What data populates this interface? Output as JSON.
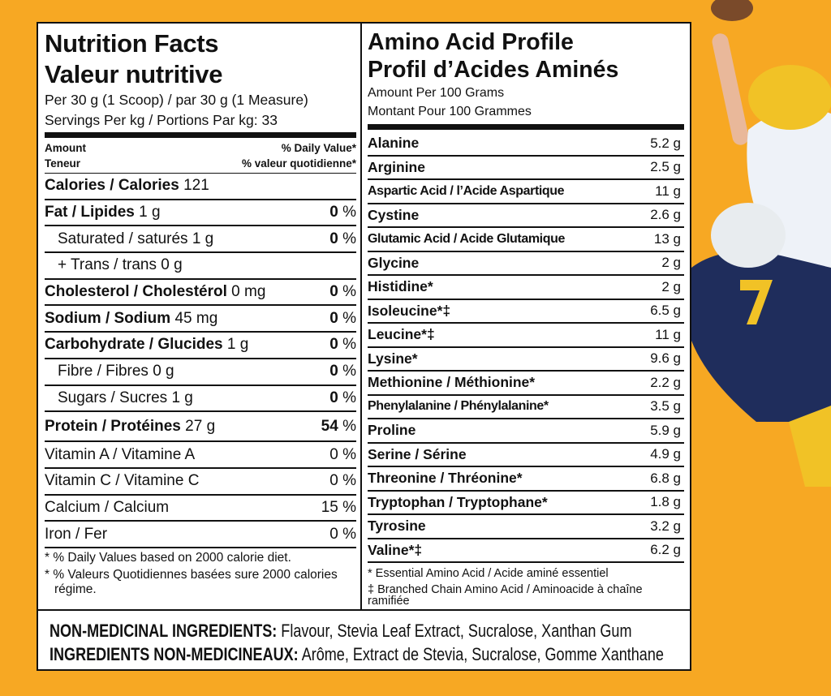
{
  "nutrition_facts": {
    "title": "Nutrition Facts",
    "title_fr": "Valeur nutritive",
    "serving": "Per 30 g (1 Scoop) / par 30 g (1 Measure)",
    "servings": "Servings Per kg / Portions Par kg: 33",
    "amount": "Amount",
    "teneur": "Teneur",
    "daily_value": "% Daily Value*",
    "valeur_quotidienne": "% valeur quotidienne*",
    "rows": [
      {
        "label": "Calories / Calories",
        "amount": "121"
      },
      {
        "label": "Fat / Lipides",
        "amount": "1 g",
        "dv": "0",
        "unit": "%"
      },
      {
        "sub": "Saturated / saturés 1 g",
        "dv": "0",
        "unit": "%"
      },
      {
        "sub": "+ Trans / trans 0 g"
      },
      {
        "label": "Cholesterol / Cholestérol",
        "amount": "0 mg",
        "dv": "0",
        "unit": "%"
      },
      {
        "label": "Sodium / Sodium",
        "amount": "45 mg",
        "dv": "0",
        "unit": "%"
      },
      {
        "label": "Carbohydrate / Glucides",
        "amount": "1 g",
        "dv": "0",
        "unit": "%"
      },
      {
        "sub": "Fibre / Fibres 0 g",
        "dv": "0",
        "unit": "%"
      },
      {
        "sub": "Sugars / Sucres 1 g",
        "dv": "0",
        "unit": "%"
      },
      {
        "label": "Protein / Protéines",
        "amount": "27 g",
        "dv": "54",
        "unit": "%"
      }
    ],
    "vitamins": [
      {
        "label": "Vitamin A / Vitamine A",
        "dv": "0 %"
      },
      {
        "label": "Vitamin C / Vitamine C",
        "dv": "0 %"
      },
      {
        "label": "Calcium / Calcium",
        "dv": "15 %"
      },
      {
        "label": "Iron / Fer",
        "dv": "0 %"
      }
    ],
    "footnotes": [
      "* % Daily Values based on 2000 calorie diet.",
      "* % Valeurs Quotidiennes basées sure 2000 calories régime."
    ]
  },
  "amino_acid_profile": {
    "title": "Amino Acid Profile",
    "title_fr": "Profil d’Acides Aminés",
    "amount_per": "Amount Per 100 Grams",
    "montant": "Montant Pour 100 Grammes",
    "rows": [
      {
        "name": "Alanine",
        "amount": "5.2 g"
      },
      {
        "name": "Arginine",
        "amount": "2.5 g"
      },
      {
        "name": "Aspartic Acid / l’Acide Aspartique",
        "amount": "11 g"
      },
      {
        "name": "Cystine",
        "amount": "2.6 g"
      },
      {
        "name": "Glutamic Acid / Acide Glutamique",
        "amount": "13 g"
      },
      {
        "name": "Glycine",
        "amount": "2 g"
      },
      {
        "name": "Histidine*",
        "amount": "2 g"
      },
      {
        "name": "Isoleucine*‡",
        "amount": "6.5 g"
      },
      {
        "name": "Leucine*‡",
        "amount": "11 g"
      },
      {
        "name": "Lysine*",
        "amount": "9.6 g"
      },
      {
        "name": "Methionine / Méthionine*",
        "amount": "2.2 g"
      },
      {
        "name": "Phenylalanine / Phénylalanine*",
        "amount": "3.5 g"
      },
      {
        "name": "Proline",
        "amount": "5.9 g"
      },
      {
        "name": "Serine / Sérine",
        "amount": "4.9 g"
      },
      {
        "name": "Threonine / Thréonine*",
        "amount": "6.8 g"
      },
      {
        "name": "Tryptophan / Tryptophane*",
        "amount": "1.8 g"
      },
      {
        "name": "Tyrosine",
        "amount": "3.2 g"
      },
      {
        "name": "Valine*‡",
        "amount": "6.2 g"
      }
    ],
    "footnotes": [
      "* Essential Amino Acid / Acide aminé essentiel",
      "‡ Branched Chain Amino Acid / Aminoacide à chaîne ramifiée"
    ]
  },
  "ingredients": [
    {
      "label": "NON-MEDICINAL INGREDIENTS:",
      "text": " Flavour, Stevia Leaf Extract, Sucralose, Xanthan Gum"
    },
    {
      "label": "INGREDIENTS NON-MEDICINEAUX:",
      "text": " Arôme, Extract de Stevia, Sucralose, Gomme Xanthane"
    }
  ]
}
